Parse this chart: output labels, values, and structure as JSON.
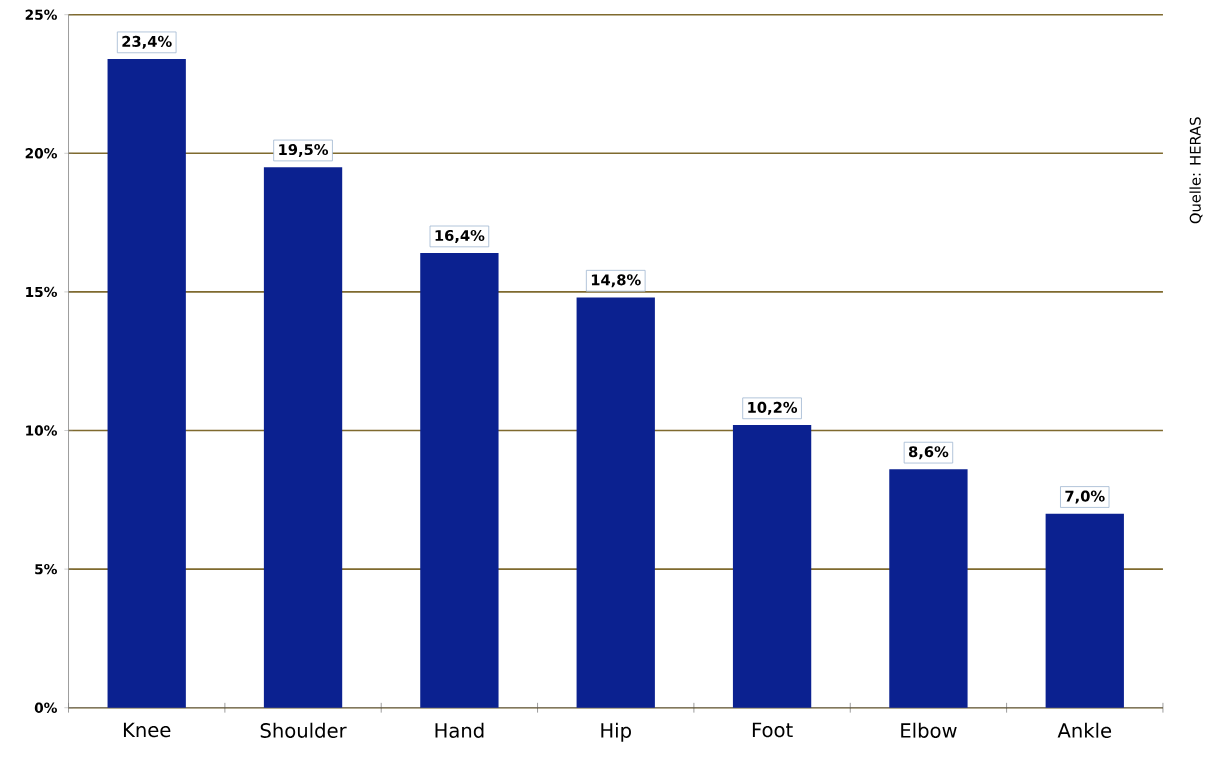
{
  "chart_data": {
    "type": "bar",
    "categories": [
      "Knee",
      "Shoulder",
      "Hand",
      "Hip",
      "Foot",
      "Elbow",
      "Ankle"
    ],
    "values": [
      23.4,
      19.5,
      16.4,
      14.8,
      10.2,
      8.6,
      7.0
    ],
    "value_labels": [
      "23,4%",
      "19,5%",
      "16,4%",
      "14,8%",
      "10,2%",
      "8,6%",
      "7,0%"
    ],
    "color": "#0b2190",
    "ylim": [
      0,
      25
    ],
    "yticks": [
      {
        "value": 0,
        "label": "0%"
      },
      {
        "value": 5,
        "label": "5%"
      },
      {
        "value": 10,
        "label": "10%"
      },
      {
        "value": 15,
        "label": "15%"
      },
      {
        "value": 20,
        "label": "20%"
      },
      {
        "value": 25,
        "label": "25%"
      }
    ],
    "grid": "y",
    "annotations": [
      "Quelle: HERAS"
    ]
  }
}
